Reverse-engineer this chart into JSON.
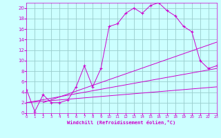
{
  "xlabel": "Windchill (Refroidissement éolien,°C)",
  "bg_color": "#ccffff",
  "grid_color": "#99cccc",
  "line_color": "#cc00cc",
  "xmin": 0,
  "xmax": 23,
  "ymin": 0,
  "ymax": 21,
  "yticks": [
    0,
    2,
    4,
    6,
    8,
    10,
    12,
    14,
    16,
    18,
    20
  ],
  "xticks": [
    0,
    1,
    2,
    3,
    4,
    5,
    6,
    7,
    8,
    9,
    10,
    11,
    12,
    13,
    14,
    15,
    16,
    17,
    18,
    19,
    20,
    21,
    22,
    23
  ],
  "series1_x": [
    0,
    1,
    2,
    3,
    4,
    5,
    6,
    7,
    8,
    9,
    10,
    11,
    12,
    13,
    14,
    15,
    16,
    17,
    18,
    19,
    20,
    21,
    22,
    23
  ],
  "series1_y": [
    4.5,
    0.3,
    3.5,
    2.0,
    2.0,
    2.5,
    5.0,
    9.0,
    5.0,
    8.5,
    16.5,
    17.0,
    19.0,
    20.0,
    19.0,
    20.5,
    21.0,
    19.5,
    18.5,
    16.5,
    15.5,
    10.0,
    8.5,
    9.0
  ],
  "line1_x": [
    0,
    23
  ],
  "line1_y": [
    2.0,
    5.0
  ],
  "line2_x": [
    0,
    23
  ],
  "line2_y": [
    2.0,
    8.5
  ],
  "line3_x": [
    2,
    23
  ],
  "line3_y": [
    2.0,
    13.5
  ]
}
